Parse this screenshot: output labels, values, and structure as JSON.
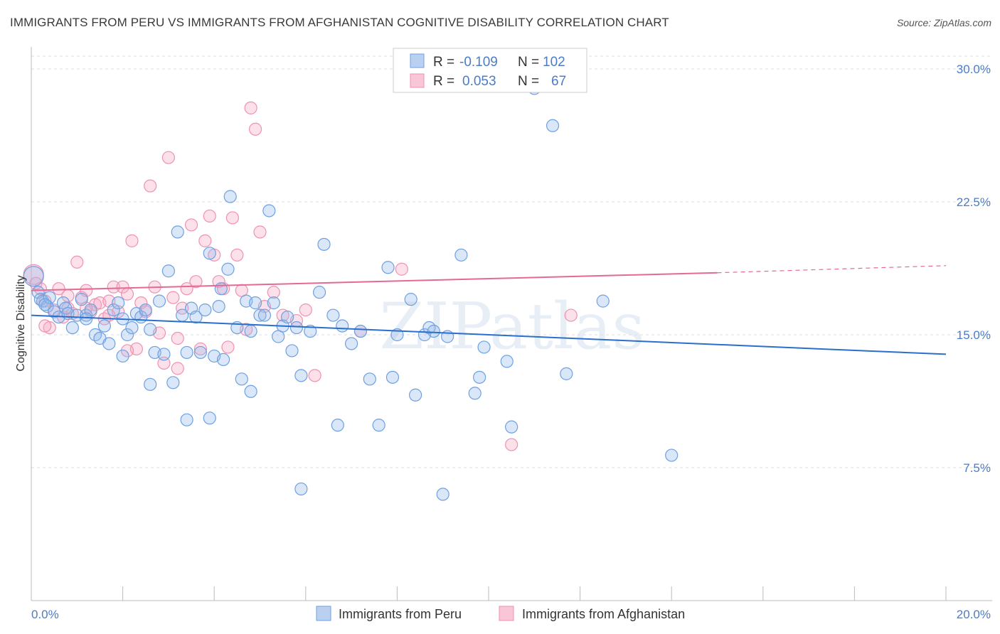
{
  "title": "IMMIGRANTS FROM PERU VS IMMIGRANTS FROM AFGHANISTAN COGNITIVE DISABILITY CORRELATION CHART",
  "source": "Source: ZipAtlas.com",
  "colors": {
    "peru": "#6fa0e0",
    "afghanistan": "#ee92b2",
    "peru_line": "#2a6fce",
    "afghanistan_line": "#e46a94",
    "tick": "#4a7cc7"
  },
  "chart_data": {
    "type": "scatter",
    "title": "IMMIGRANTS FROM PERU VS IMMIGRANTS FROM AFGHANISTAN COGNITIVE DISABILITY CORRELATION CHART",
    "xlabel": "",
    "ylabel": "Cognitive Disability",
    "xlim": [
      0,
      20
    ],
    "ylim": [
      0,
      30
    ],
    "x_ticks": [
      "0.0%",
      "20.0%"
    ],
    "y_ticks": [
      {
        "value": 7.5,
        "label": "7.5%"
      },
      {
        "value": 15.0,
        "label": "15.0%"
      },
      {
        "value": 22.5,
        "label": "22.5%"
      },
      {
        "value": 30.0,
        "label": "30.0%"
      }
    ],
    "grid": true,
    "watermark": "ZIPatlas",
    "legend": [
      {
        "name": "Immigrants from Peru",
        "r_label": "R =",
        "r": "-0.109",
        "n_label": "N =",
        "n": "102"
      },
      {
        "name": "Immigrants from Afghanistan",
        "r_label": "R =",
        "r": "0.053",
        "n_label": "N =",
        "n": "67"
      }
    ],
    "series": [
      {
        "name": "Immigrants from Peru",
        "trend": {
          "x": [
            0,
            20
          ],
          "y": [
            16.1,
            13.9
          ]
        },
        "points": [
          [
            0.05,
            18.3
          ],
          [
            0.15,
            17.4
          ],
          [
            0.2,
            17.0
          ],
          [
            0.25,
            16.9
          ],
          [
            0.35,
            16.6
          ],
          [
            0.4,
            17.1
          ],
          [
            0.5,
            16.3
          ],
          [
            0.6,
            16.0
          ],
          [
            0.7,
            16.8
          ],
          [
            0.75,
            16.5
          ],
          [
            0.8,
            16.2
          ],
          [
            0.9,
            15.4
          ],
          [
            1.0,
            16.1
          ],
          [
            1.1,
            17.0
          ],
          [
            1.2,
            16.1
          ],
          [
            1.3,
            16.4
          ],
          [
            1.4,
            15.0
          ],
          [
            1.5,
            14.8
          ],
          [
            1.6,
            15.5
          ],
          [
            1.7,
            14.5
          ],
          [
            1.8,
            16.4
          ],
          [
            1.9,
            16.8
          ],
          [
            2.0,
            15.9
          ],
          [
            2.1,
            15.0
          ],
          [
            2.2,
            15.4
          ],
          [
            2.3,
            16.2
          ],
          [
            2.4,
            16.0
          ],
          [
            2.5,
            16.4
          ],
          [
            2.6,
            15.3
          ],
          [
            2.7,
            14.0
          ],
          [
            2.8,
            16.9
          ],
          [
            2.9,
            13.9
          ],
          [
            3.0,
            18.6
          ],
          [
            3.1,
            12.3
          ],
          [
            3.2,
            20.8
          ],
          [
            3.3,
            16.1
          ],
          [
            3.4,
            14.0
          ],
          [
            3.5,
            16.5
          ],
          [
            3.6,
            16.0
          ],
          [
            3.7,
            14.0
          ],
          [
            3.8,
            16.4
          ],
          [
            3.9,
            19.6
          ],
          [
            4.0,
            13.8
          ],
          [
            4.1,
            16.6
          ],
          [
            4.15,
            17.6
          ],
          [
            4.2,
            13.6
          ],
          [
            4.3,
            18.7
          ],
          [
            4.35,
            22.8
          ],
          [
            4.5,
            15.4
          ],
          [
            4.6,
            12.5
          ],
          [
            4.7,
            16.9
          ],
          [
            4.8,
            15.2
          ],
          [
            4.9,
            16.8
          ],
          [
            5.0,
            16.1
          ],
          [
            5.1,
            16.1
          ],
          [
            5.2,
            22.0
          ],
          [
            5.3,
            16.8
          ],
          [
            5.4,
            14.9
          ],
          [
            5.5,
            15.5
          ],
          [
            5.6,
            16.0
          ],
          [
            5.7,
            14.1
          ],
          [
            5.8,
            15.4
          ],
          [
            5.9,
            12.7
          ],
          [
            6.1,
            15.2
          ],
          [
            6.3,
            17.4
          ],
          [
            6.4,
            20.1
          ],
          [
            6.6,
            16.1
          ],
          [
            6.8,
            15.5
          ],
          [
            7.0,
            14.5
          ],
          [
            7.2,
            15.2
          ],
          [
            7.4,
            12.5
          ],
          [
            7.6,
            9.9
          ],
          [
            7.8,
            18.8
          ],
          [
            8.0,
            15.0
          ],
          [
            8.3,
            17.0
          ],
          [
            8.4,
            11.6
          ],
          [
            8.6,
            15.0
          ],
          [
            8.7,
            15.4
          ],
          [
            8.8,
            15.2
          ],
          [
            9.1,
            14.9
          ],
          [
            9.4,
            19.5
          ],
          [
            9.7,
            11.7
          ],
          [
            9.8,
            12.6
          ],
          [
            9.9,
            14.3
          ],
          [
            10.4,
            13.5
          ],
          [
            10.5,
            9.8
          ],
          [
            11.0,
            28.9
          ],
          [
            11.4,
            26.8
          ],
          [
            11.7,
            12.8
          ],
          [
            12.5,
            16.9
          ],
          [
            14.0,
            8.2
          ],
          [
            5.9,
            6.3
          ],
          [
            3.4,
            10.2
          ],
          [
            4.8,
            11.8
          ],
          [
            7.9,
            12.6
          ],
          [
            2.6,
            12.2
          ],
          [
            3.9,
            10.3
          ],
          [
            6.7,
            9.9
          ],
          [
            9.0,
            6.0
          ],
          [
            2.0,
            13.8
          ],
          [
            1.2,
            15.9
          ],
          [
            0.3,
            16.7
          ]
        ]
      },
      {
        "name": "Immigrants from Afghanistan",
        "trend": {
          "x": [
            0,
            15
          ],
          "y": [
            17.5,
            18.5
          ]
        },
        "trend_dashed": {
          "x": [
            15,
            20
          ],
          "y": [
            18.5,
            18.9
          ]
        },
        "points": [
          [
            0.05,
            18.4
          ],
          [
            0.1,
            17.9
          ],
          [
            0.2,
            17.6
          ],
          [
            0.3,
            16.9
          ],
          [
            0.4,
            15.4
          ],
          [
            0.5,
            16.4
          ],
          [
            0.6,
            17.6
          ],
          [
            0.7,
            16.0
          ],
          [
            0.8,
            16.5
          ],
          [
            0.9,
            16.2
          ],
          [
            1.0,
            19.1
          ],
          [
            1.1,
            17.1
          ],
          [
            1.2,
            17.5
          ],
          [
            1.3,
            16.3
          ],
          [
            1.4,
            16.7
          ],
          [
            1.5,
            16.8
          ],
          [
            1.6,
            15.9
          ],
          [
            1.7,
            16.9
          ],
          [
            1.8,
            17.7
          ],
          [
            1.9,
            16.3
          ],
          [
            2.0,
            17.7
          ],
          [
            2.1,
            17.3
          ],
          [
            2.2,
            20.3
          ],
          [
            2.3,
            14.2
          ],
          [
            2.4,
            16.8
          ],
          [
            2.5,
            16.3
          ],
          [
            2.6,
            23.4
          ],
          [
            2.7,
            17.7
          ],
          [
            2.8,
            15.1
          ],
          [
            2.9,
            13.4
          ],
          [
            3.0,
            25.0
          ],
          [
            3.1,
            17.1
          ],
          [
            3.2,
            14.8
          ],
          [
            3.3,
            16.5
          ],
          [
            3.4,
            17.6
          ],
          [
            3.5,
            21.2
          ],
          [
            3.6,
            18.0
          ],
          [
            3.7,
            14.2
          ],
          [
            3.8,
            20.3
          ],
          [
            3.9,
            21.7
          ],
          [
            4.0,
            19.5
          ],
          [
            4.1,
            18.0
          ],
          [
            4.2,
            17.6
          ],
          [
            4.3,
            14.3
          ],
          [
            4.4,
            21.6
          ],
          [
            4.5,
            19.5
          ],
          [
            4.6,
            17.5
          ],
          [
            4.7,
            15.3
          ],
          [
            4.8,
            27.8
          ],
          [
            4.9,
            26.6
          ],
          [
            5.0,
            20.8
          ],
          [
            5.1,
            16.6
          ],
          [
            5.3,
            17.4
          ],
          [
            5.5,
            16.1
          ],
          [
            5.8,
            15.8
          ],
          [
            6.0,
            16.4
          ],
          [
            6.2,
            12.7
          ],
          [
            7.2,
            15.2
          ],
          [
            8.1,
            18.7
          ],
          [
            10.5,
            8.8
          ],
          [
            11.8,
            16.1
          ],
          [
            0.3,
            15.5
          ],
          [
            0.8,
            17.2
          ],
          [
            1.2,
            16.5
          ],
          [
            1.7,
            16.1
          ],
          [
            2.1,
            14.1
          ],
          [
            3.2,
            13.1
          ]
        ]
      }
    ]
  }
}
